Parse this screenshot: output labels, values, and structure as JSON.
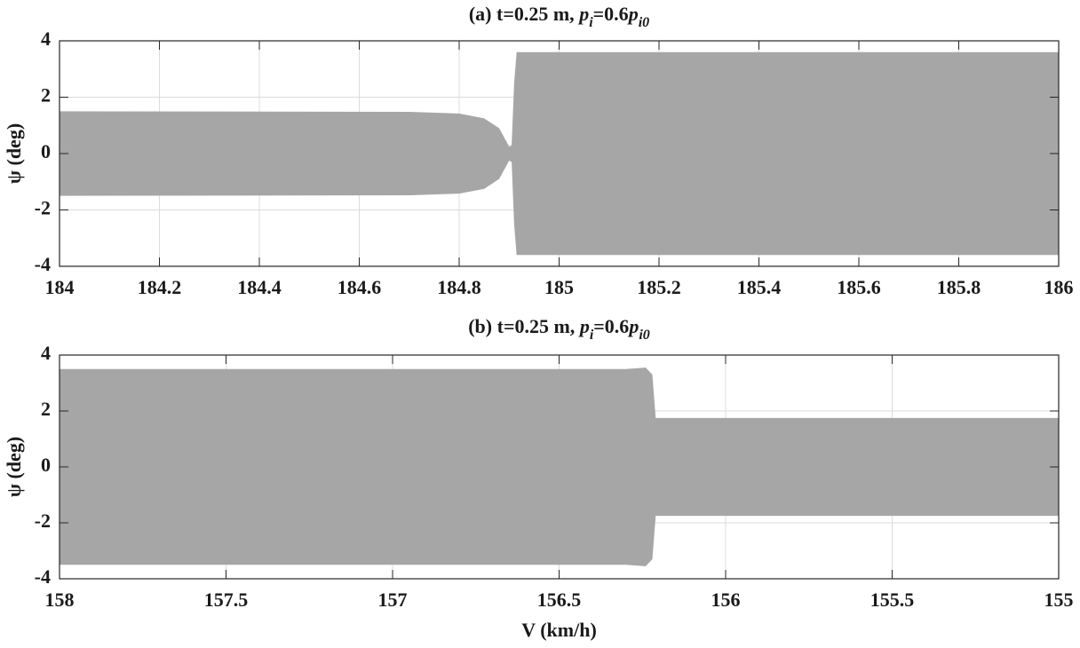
{
  "chart_data": [
    {
      "type": "area",
      "title_parts": [
        "(a) t=0.25 m,  ",
        "p",
        "i",
        "=0.6",
        "p",
        "i0"
      ],
      "ylabel": "ψ (deg)",
      "x": [
        184,
        184.7,
        184.8,
        184.85,
        184.88,
        184.9,
        184.905,
        184.91,
        184.915,
        186
      ],
      "series": [
        {
          "color": "#a6a6a6",
          "values": [
            1.5,
            1.48,
            1.42,
            1.25,
            0.9,
            0.25,
            0.3,
            2.5,
            3.6,
            3.6
          ]
        },
        {
          "color": "#a6a6a6",
          "values": [
            -1.5,
            -1.48,
            -1.42,
            -1.25,
            -0.9,
            -0.25,
            -0.3,
            -2.5,
            -3.6,
            -3.6
          ]
        }
      ],
      "xlim": [
        184,
        186
      ],
      "xticks": [
        184,
        184.2,
        184.4,
        184.6,
        184.8,
        185,
        185.2,
        185.4,
        185.6,
        185.8,
        186
      ],
      "ylim": [
        -4,
        4
      ],
      "yticks": [
        -4,
        -2,
        0,
        2,
        4
      ],
      "grid": true
    },
    {
      "type": "area",
      "title_parts": [
        "(b) t=0.25 m,  ",
        "p",
        "i",
        "=0.6",
        "p",
        "i0"
      ],
      "ylabel": "ψ (deg)",
      "xlabel": "V (km/h)",
      "x": [
        158,
        156.3,
        156.24,
        156.22,
        156.21,
        155
      ],
      "series": [
        {
          "color": "#a6a6a6",
          "values": [
            3.5,
            3.5,
            3.55,
            3.3,
            1.75,
            1.75
          ]
        },
        {
          "color": "#a6a6a6",
          "values": [
            -3.5,
            -3.5,
            -3.55,
            -3.3,
            -1.75,
            -1.75
          ]
        }
      ],
      "xlim": [
        158,
        155
      ],
      "xticks": [
        158,
        157.5,
        157,
        156.5,
        156,
        155.5,
        155
      ],
      "ylim": [
        -4,
        4
      ],
      "yticks": [
        -4,
        -2,
        0,
        2,
        4
      ],
      "grid": true
    }
  ]
}
